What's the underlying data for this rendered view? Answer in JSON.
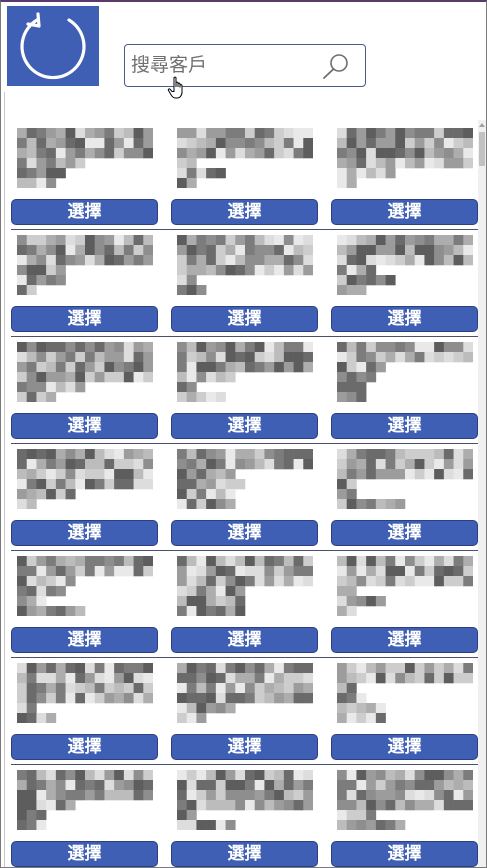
{
  "header": {
    "refresh_icon": "refresh-icon",
    "search": {
      "placeholder": "搜尋客戶",
      "value": "",
      "icon": "search-icon"
    }
  },
  "colors": {
    "accent": "#3f5fb5",
    "button_border": "#2c3f80",
    "separator": "#4a5070"
  },
  "grid": {
    "columns": 3,
    "button_label": "選擇",
    "rows": [
      [
        {
          "label": "選擇"
        },
        {
          "label": "選擇"
        },
        {
          "label": "選擇"
        }
      ],
      [
        {
          "label": "選擇"
        },
        {
          "label": "選擇"
        },
        {
          "label": "選擇"
        }
      ],
      [
        {
          "label": "選擇"
        },
        {
          "label": "選擇"
        },
        {
          "label": "選擇"
        }
      ],
      [
        {
          "label": "選擇"
        },
        {
          "label": "選擇"
        },
        {
          "label": "選擇"
        }
      ],
      [
        {
          "label": "選擇"
        },
        {
          "label": "選擇"
        },
        {
          "label": "選擇"
        }
      ],
      [
        {
          "label": "選擇"
        },
        {
          "label": "選擇"
        },
        {
          "label": "選擇"
        }
      ],
      [
        {
          "label": "選擇"
        },
        {
          "label": "選擇"
        },
        {
          "label": "選擇"
        }
      ]
    ]
  }
}
